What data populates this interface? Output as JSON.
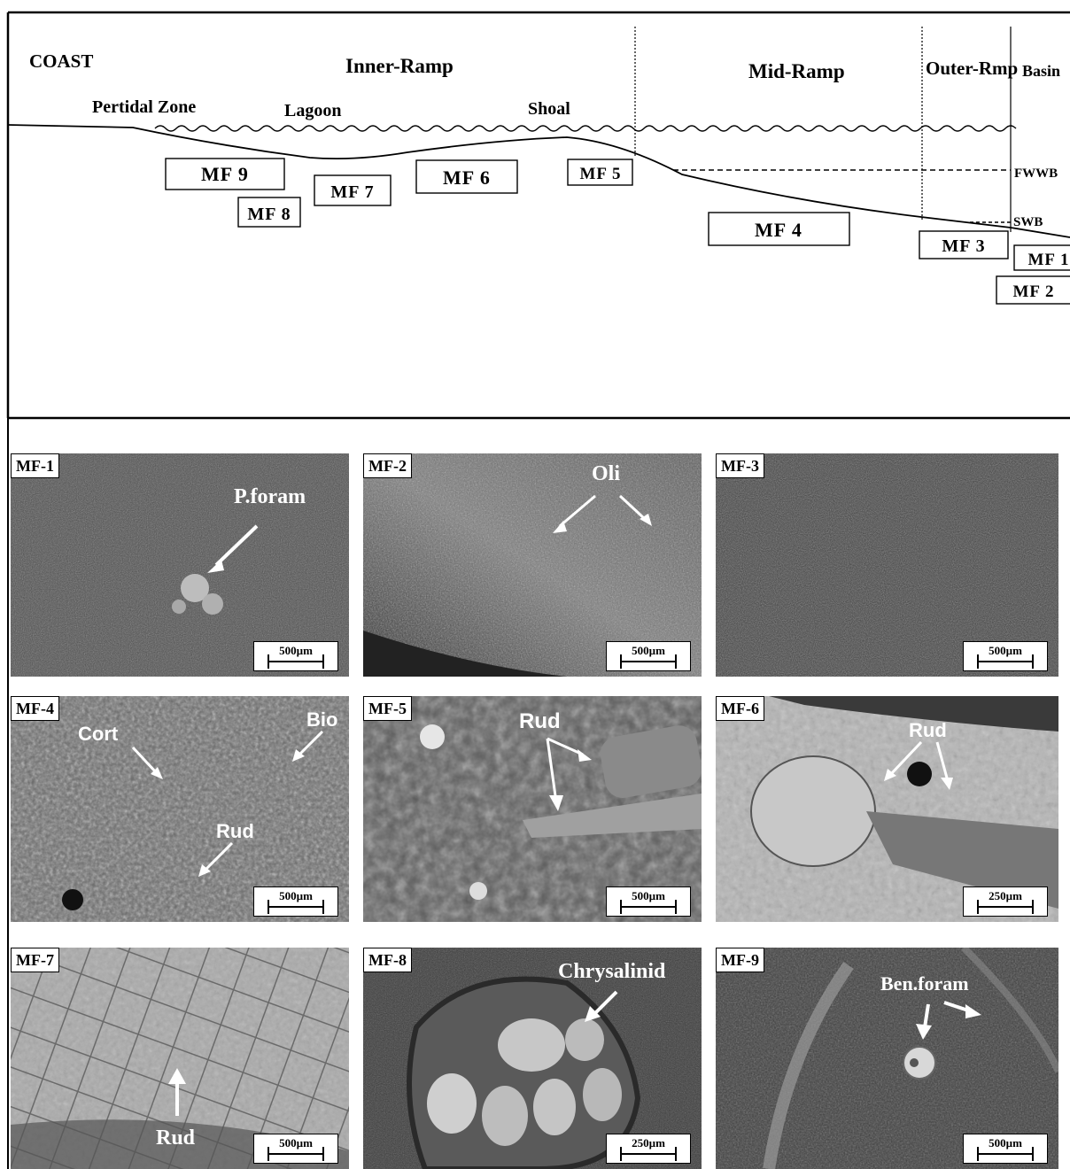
{
  "diagram": {
    "zones": {
      "coast": "COAST",
      "inner": "Inner-Ramp",
      "mid": "Mid-Ramp",
      "outer": "Outer-Rmp",
      "basin": "Basin"
    },
    "subzones": {
      "peritidal": "Pertidal Zone",
      "lagoon": "Lagoon",
      "shoal": "Shoal"
    },
    "levels": {
      "fwwb": "FWWB",
      "swb": "SWB"
    },
    "facies": {
      "mf9": "MF 9",
      "mf8": "MF 8",
      "mf7": "MF 7",
      "mf6": "MF 6",
      "mf5": "MF 5",
      "mf4": "MF 4",
      "mf3": "MF 3",
      "mf1": "MF 1",
      "mf2": "MF 2"
    }
  },
  "panels": [
    {
      "tag": "MF-1",
      "scale": "500µm",
      "annotations": [
        "P.foram"
      ]
    },
    {
      "tag": "MF-2",
      "scale": "500µm",
      "annotations": [
        "Oli"
      ]
    },
    {
      "tag": "MF-3",
      "scale": "500µm",
      "annotations": []
    },
    {
      "tag": "MF-4",
      "scale": "500µm",
      "annotations": [
        "Cort",
        "Bio",
        "Rud"
      ]
    },
    {
      "tag": "MF-5",
      "scale": "500µm",
      "annotations": [
        "Rud"
      ]
    },
    {
      "tag": "MF-6",
      "scale": "250µm",
      "annotations": [
        "Rud"
      ]
    },
    {
      "tag": "MF-7",
      "scale": "500µm",
      "annotations": [
        "Rud"
      ]
    },
    {
      "tag": "MF-8",
      "scale": "250µm",
      "annotations": [
        "Chrysalinid"
      ]
    },
    {
      "tag": "MF-9",
      "scale": "500µm",
      "annotations": [
        "Ben.foram"
      ]
    }
  ]
}
